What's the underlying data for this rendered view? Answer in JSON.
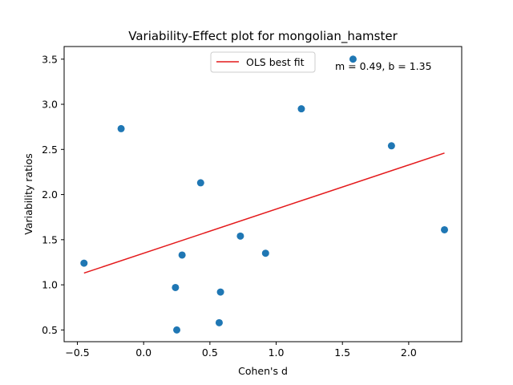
{
  "chart_data": {
    "type": "scatter",
    "title": "Variability-Effect plot for mongolian_hamster",
    "xlabel": "Cohen's d",
    "ylabel": "Variability ratios",
    "xlim": [
      -0.6,
      2.4
    ],
    "ylim": [
      0.37,
      3.64
    ],
    "xticks": [
      -0.5,
      0.0,
      0.5,
      1.0,
      1.5,
      2.0
    ],
    "xtick_labels": [
      "−0.5",
      "0.0",
      "0.5",
      "1.0",
      "1.5",
      "2.0"
    ],
    "yticks": [
      0.5,
      1.0,
      1.5,
      2.0,
      2.5,
      3.0,
      3.5
    ],
    "ytick_labels": [
      "0.5",
      "1.0",
      "1.5",
      "2.0",
      "2.5",
      "3.0",
      "3.5"
    ],
    "grid": false,
    "legend_position": "top-center",
    "annotation": "m = 0.49, b = 1.35",
    "colors": {
      "points": "#1f77b4",
      "fit_line": "#e41a1c"
    },
    "series": [
      {
        "type": "scatter",
        "x": [
          -0.45,
          -0.17,
          0.24,
          0.25,
          0.29,
          0.43,
          0.57,
          0.58,
          0.73,
          0.92,
          1.19,
          1.58,
          1.87,
          2.27
        ],
        "y": [
          1.24,
          2.73,
          0.97,
          0.5,
          1.33,
          2.13,
          0.58,
          0.92,
          1.54,
          1.35,
          2.95,
          3.5,
          2.54,
          1.61
        ]
      },
      {
        "type": "line",
        "name": "OLS best fit",
        "x": [
          -0.45,
          2.27
        ],
        "y": [
          1.13,
          2.46
        ]
      }
    ]
  }
}
